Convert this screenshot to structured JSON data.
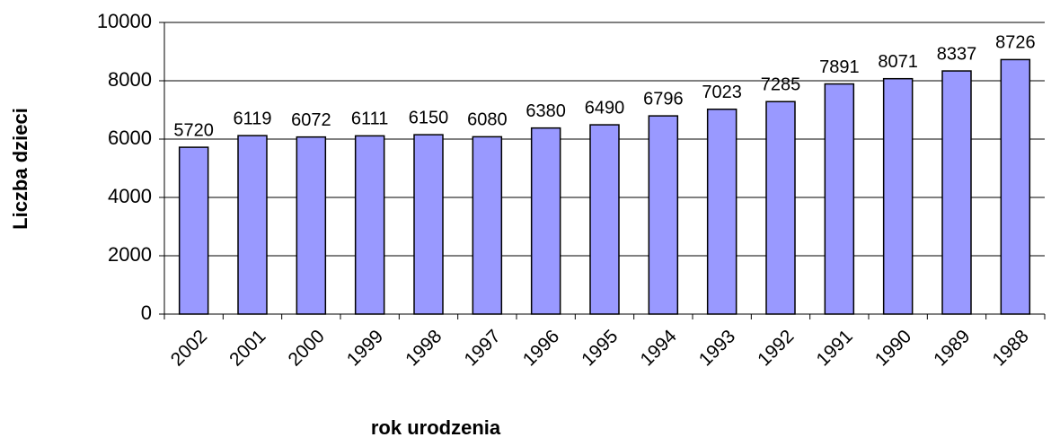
{
  "chart_data": {
    "type": "bar",
    "x_label": "rok urodzenia",
    "y_label": "Liczba dzieci",
    "categories": [
      "2002",
      "2001",
      "2000",
      "1999",
      "1998",
      "1997",
      "1996",
      "1995",
      "1994",
      "1993",
      "1992",
      "1991",
      "1990",
      "1989",
      "1988"
    ],
    "values": [
      5720,
      6119,
      6072,
      6111,
      6150,
      6080,
      6380,
      6490,
      6796,
      7023,
      7285,
      7891,
      8071,
      8337,
      8726
    ],
    "color": "#9999ff",
    "ylim": [
      0,
      10000
    ],
    "yticks": [
      0,
      2000,
      4000,
      6000,
      8000,
      10000
    ],
    "grid": true
  }
}
